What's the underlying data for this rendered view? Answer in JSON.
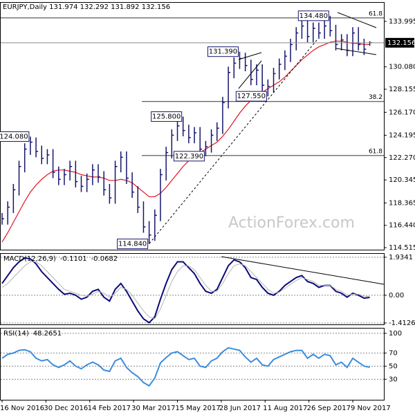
{
  "chart_data": [
    {
      "type": "ohlc",
      "title": "EURJPY,Daily  131.974 132.292 131.892 132.156",
      "watermark": "ActionForex.com",
      "x": [
        0,
        4,
        8,
        12,
        16,
        20,
        24,
        28,
        32,
        36,
        40,
        44,
        48,
        52,
        56,
        60,
        64,
        68,
        72,
        76,
        80,
        84,
        88,
        92,
        96,
        100,
        104,
        108,
        112,
        116,
        120,
        124,
        128,
        132,
        136,
        140,
        144,
        148,
        152,
        156,
        160,
        164,
        168,
        172,
        176,
        180,
        184,
        188,
        192,
        196,
        200,
        204,
        208,
        212,
        216,
        220,
        224,
        228,
        232,
        236,
        240,
        244,
        248,
        252,
        256,
        260
      ],
      "xlim": [
        0,
        270
      ],
      "xticks": [
        {
          "value": 0,
          "label": "16 Nov 2016"
        },
        {
          "value": 31,
          "label": "30 Dec 2016"
        },
        {
          "value": 62,
          "label": "14 Feb 2017"
        },
        {
          "value": 93,
          "label": "30 Mar 2017"
        },
        {
          "value": 124,
          "label": "15 May 2017"
        },
        {
          "value": 155,
          "label": "28 Jun 2017"
        },
        {
          "value": 186,
          "label": "11 Aug 2017"
        },
        {
          "value": 217,
          "label": "26 Sep 2017"
        },
        {
          "value": 248,
          "label": "9 Nov 2017"
        }
      ],
      "color": "#14146e",
      "high": [
        117.5,
        118.5,
        120.0,
        122.0,
        123.5,
        124.08,
        124.0,
        123.3,
        123.0,
        123.0,
        121.5,
        121.3,
        122.0,
        122.0,
        120.7,
        120.9,
        121.7,
        121.7,
        121.1,
        120.0,
        122.0,
        122.8,
        122.8,
        121.0,
        119.8,
        118.5,
        116.8,
        117.8,
        121.3,
        123.2,
        124.7,
        125.5,
        125.8,
        125.1,
        124.9,
        124.9,
        123.7,
        124.7,
        125.3,
        127.5,
        130.1,
        130.9,
        131.39,
        131.3,
        130.7,
        130.3,
        130.3,
        129.0,
        130.0,
        130.8,
        131.5,
        132.5,
        133.5,
        134.1,
        134.1,
        133.9,
        133.9,
        134.1,
        134.48,
        133.7,
        132.9,
        132.9,
        133.5,
        133.5,
        132.5,
        132.292
      ],
      "low": [
        116.5,
        116.5,
        117.5,
        119.0,
        121.0,
        122.5,
        122.3,
        121.7,
        121.7,
        120.5,
        119.9,
        119.9,
        120.3,
        119.7,
        119.3,
        119.3,
        119.9,
        120.1,
        119.0,
        118.3,
        118.3,
        121.0,
        120.0,
        118.8,
        117.5,
        115.8,
        114.84,
        115.1,
        116.8,
        120.3,
        122.2,
        123.7,
        124.1,
        123.5,
        123.5,
        122.5,
        122.39,
        122.7,
        123.7,
        124.3,
        126.5,
        129.1,
        129.9,
        129.7,
        128.5,
        128.5,
        128.0,
        127.55,
        127.9,
        129.0,
        129.8,
        130.5,
        131.5,
        132.5,
        132.2,
        132.2,
        132.5,
        132.5,
        132.7,
        131.5,
        131.5,
        131.0,
        131.0,
        131.5,
        131.1,
        131.892
      ],
      "close": [
        117.0,
        118.0,
        119.5,
        121.5,
        123.0,
        123.6,
        122.8,
        122.2,
        122.5,
        121.0,
        120.4,
        120.8,
        121.5,
        120.2,
        119.8,
        120.4,
        121.2,
        120.6,
        119.5,
        118.8,
        121.5,
        122.3,
        120.5,
        119.3,
        118.0,
        116.3,
        115.6,
        117.3,
        120.8,
        122.7,
        124.2,
        125.0,
        124.6,
        124.0,
        124.4,
        123.0,
        123.2,
        124.2,
        124.8,
        127.0,
        129.6,
        130.4,
        130.8,
        130.2,
        129.0,
        129.8,
        128.5,
        128.4,
        129.5,
        130.3,
        131.0,
        132.0,
        133.0,
        133.6,
        132.7,
        133.4,
        133.0,
        133.6,
        133.2,
        132.0,
        132.4,
        131.5,
        133.0,
        132.0,
        131.6,
        132.156
      ],
      "ma": {
        "color": "#e0141e",
        "values": [
          115.0,
          115.8,
          116.7,
          117.6,
          118.5,
          119.3,
          119.9,
          120.4,
          120.8,
          121.1,
          121.2,
          121.2,
          121.1,
          121.0,
          120.8,
          120.7,
          120.6,
          120.6,
          120.5,
          120.3,
          120.3,
          120.4,
          120.3,
          120.1,
          119.7,
          119.3,
          118.9,
          118.9,
          119.2,
          119.7,
          120.3,
          120.9,
          121.5,
          122.0,
          122.4,
          122.7,
          123.0,
          123.3,
          123.6,
          124.1,
          124.7,
          125.4,
          126.1,
          126.7,
          127.2,
          127.6,
          127.9,
          128.2,
          128.5,
          128.8,
          129.2,
          129.7,
          130.2,
          130.7,
          131.1,
          131.5,
          131.8,
          132.0,
          132.2,
          132.3,
          132.3,
          132.2,
          132.1,
          132.1,
          132.0,
          132.0
        ]
      },
      "ylim": [
        114.34,
        135.6
      ],
      "yticks": [
        133.995,
        {
          "value": 130.08,
          "label": "130.080"
        },
        128.155,
        {
          "value": 126.17,
          "label": "126.170"
        },
        124.195,
        {
          "value": 122.27,
          "label": "122.270"
        },
        120.345,
        118.365,
        {
          "value": 116.44,
          "label": "116.440"
        },
        114.515
      ],
      "levels": [
        {
          "label": "61.8",
          "value": 134.3
        },
        {
          "label": "38.2",
          "value": 127.1
        },
        {
          "label": "61.8",
          "value": 122.45
        }
      ],
      "annotations": [
        {
          "label": "124.080",
          "value": 124.08,
          "x": 20
        },
        {
          "label": "114.840",
          "value": 114.84,
          "x": 104
        },
        {
          "label": "125.800",
          "value": 125.8,
          "x": 128
        },
        {
          "label": "122.390",
          "value": 122.39,
          "x": 144
        },
        {
          "label": "131.390",
          "value": 131.39,
          "x": 168
        },
        {
          "label": "127.550",
          "value": 127.55,
          "x": 188
        },
        {
          "label": "134.480",
          "value": 134.48,
          "x": 232
        }
      ]
    },
    {
      "type": "line",
      "title": "MACD(12,26,9)",
      "ylim": [
        -1.485,
        2.107
      ],
      "yticks": [
        1.9341,
        {
          "value": 0,
          "label": "0.00"
        },
        -1.4126
      ],
      "grid": true,
      "series": [
        {
          "color": "#0a0a78",
          "values": [
            0.6,
            1.0,
            1.4,
            1.7,
            1.9,
            1.85,
            1.6,
            1.2,
            0.9,
            0.6,
            0.3,
            0.05,
            0.1,
            0.0,
            -0.2,
            -0.1,
            0.2,
            0.3,
            -0.1,
            -0.3,
            0.3,
            0.6,
            0.2,
            -0.3,
            -0.8,
            -1.2,
            -1.4,
            -1.1,
            -0.2,
            0.6,
            1.3,
            1.7,
            1.7,
            1.4,
            1.1,
            0.6,
            0.2,
            0.1,
            0.3,
            0.9,
            1.5,
            1.8,
            1.7,
            1.4,
            0.9,
            0.8,
            0.4,
            0.1,
            0.0,
            0.2,
            0.5,
            0.7,
            0.9,
            1.0,
            0.7,
            0.6,
            0.4,
            0.5,
            0.5,
            0.2,
            0.1,
            -0.1,
            0.1,
            0.0,
            -0.15,
            -0.1101
          ]
        },
        {
          "color": "#b4b4b4",
          "values": [
            0.4,
            0.6,
            0.9,
            1.2,
            1.5,
            1.7,
            1.7,
            1.5,
            1.2,
            0.9,
            0.6,
            0.3,
            0.2,
            0.1,
            0.0,
            -0.05,
            0.05,
            0.2,
            0.1,
            -0.1,
            0.1,
            0.4,
            0.3,
            0.0,
            -0.4,
            -0.8,
            -1.1,
            -1.2,
            -0.7,
            0.0,
            0.7,
            1.2,
            1.5,
            1.5,
            1.3,
            0.9,
            0.5,
            0.2,
            0.2,
            0.6,
            1.1,
            1.5,
            1.6,
            1.5,
            1.2,
            0.9,
            0.6,
            0.3,
            0.1,
            0.15,
            0.35,
            0.55,
            0.75,
            0.9,
            0.8,
            0.7,
            0.5,
            0.5,
            0.5,
            0.3,
            0.2,
            0.0,
            0.05,
            0.05,
            -0.05,
            -0.0682
          ]
        }
      ]
    },
    {
      "type": "line",
      "title": "RSI(14)",
      "ylim": [
        -1.3,
        107.3
      ],
      "yticks": [
        100,
        70,
        50,
        30
      ],
      "grid": true,
      "series": [
        {
          "color": "#3c8cdc",
          "values": [
            62,
            68,
            70,
            74,
            75,
            72,
            62,
            58,
            60,
            52,
            48,
            52,
            58,
            50,
            46,
            52,
            56,
            52,
            44,
            42,
            58,
            62,
            48,
            40,
            34,
            25,
            20,
            32,
            55,
            63,
            70,
            72,
            66,
            60,
            62,
            50,
            48,
            58,
            62,
            72,
            78,
            76,
            74,
            64,
            56,
            62,
            52,
            50,
            60,
            64,
            68,
            72,
            74,
            74,
            62,
            68,
            62,
            68,
            66,
            52,
            56,
            48,
            62,
            56,
            50,
            48.2651
          ]
        }
      ]
    }
  ]
}
